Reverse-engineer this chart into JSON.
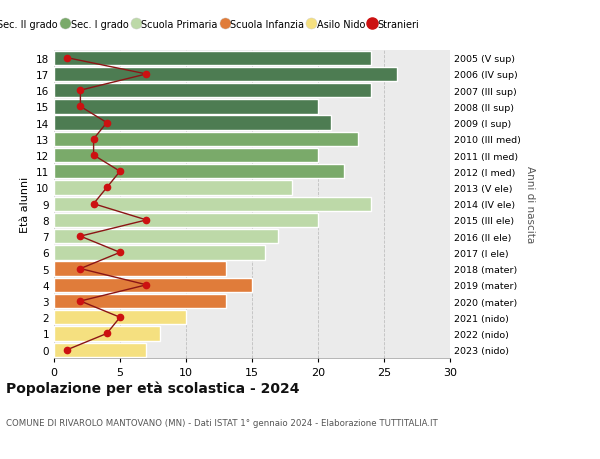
{
  "ages": [
    18,
    17,
    16,
    15,
    14,
    13,
    12,
    11,
    10,
    9,
    8,
    7,
    6,
    5,
    4,
    3,
    2,
    1,
    0
  ],
  "right_labels": [
    "2005 (V sup)",
    "2006 (IV sup)",
    "2007 (III sup)",
    "2008 (II sup)",
    "2009 (I sup)",
    "2010 (III med)",
    "2011 (II med)",
    "2012 (I med)",
    "2013 (V ele)",
    "2014 (IV ele)",
    "2015 (III ele)",
    "2016 (II ele)",
    "2017 (I ele)",
    "2018 (mater)",
    "2019 (mater)",
    "2020 (mater)",
    "2021 (nido)",
    "2022 (nido)",
    "2023 (nido)"
  ],
  "bar_values": [
    24,
    26,
    24,
    20,
    21,
    23,
    20,
    22,
    18,
    24,
    20,
    17,
    16,
    13,
    15,
    13,
    10,
    8,
    7
  ],
  "bar_colors": [
    "#4d7c52",
    "#4d7c52",
    "#4d7c52",
    "#4d7c52",
    "#4d7c52",
    "#7aaa6a",
    "#7aaa6a",
    "#7aaa6a",
    "#bdd9a8",
    "#bdd9a8",
    "#bdd9a8",
    "#bdd9a8",
    "#bdd9a8",
    "#e07c3a",
    "#e07c3a",
    "#e07c3a",
    "#f5e080",
    "#f5e080",
    "#f5e080"
  ],
  "stranieri_values": [
    1,
    7,
    2,
    2,
    4,
    3,
    3,
    5,
    4,
    3,
    7,
    2,
    5,
    2,
    7,
    2,
    5,
    4,
    1
  ],
  "legend_labels": [
    "Sec. II grado",
    "Sec. I grado",
    "Scuola Primaria",
    "Scuola Infanzia",
    "Asilo Nido",
    "Stranieri"
  ],
  "legend_colors": [
    "#4d7c52",
    "#7aaa6a",
    "#bdd9a8",
    "#e07c3a",
    "#f5e080",
    "#cc1111"
  ],
  "title": "Popolazione per età scolastica - 2024",
  "subtitle": "COMUNE DI RIVAROLO MANTOVANO (MN) - Dati ISTAT 1° gennaio 2024 - Elaborazione TUTTITALIA.IT",
  "ylabel": "Età alunni",
  "right_ylabel": "Anni di nascita",
  "xlim": [
    0,
    30
  ],
  "background_color": "#ffffff",
  "plot_bg": "#ebebeb",
  "stranieri_line_color": "#8b1515",
  "stranieri_dot_color": "#cc1111"
}
